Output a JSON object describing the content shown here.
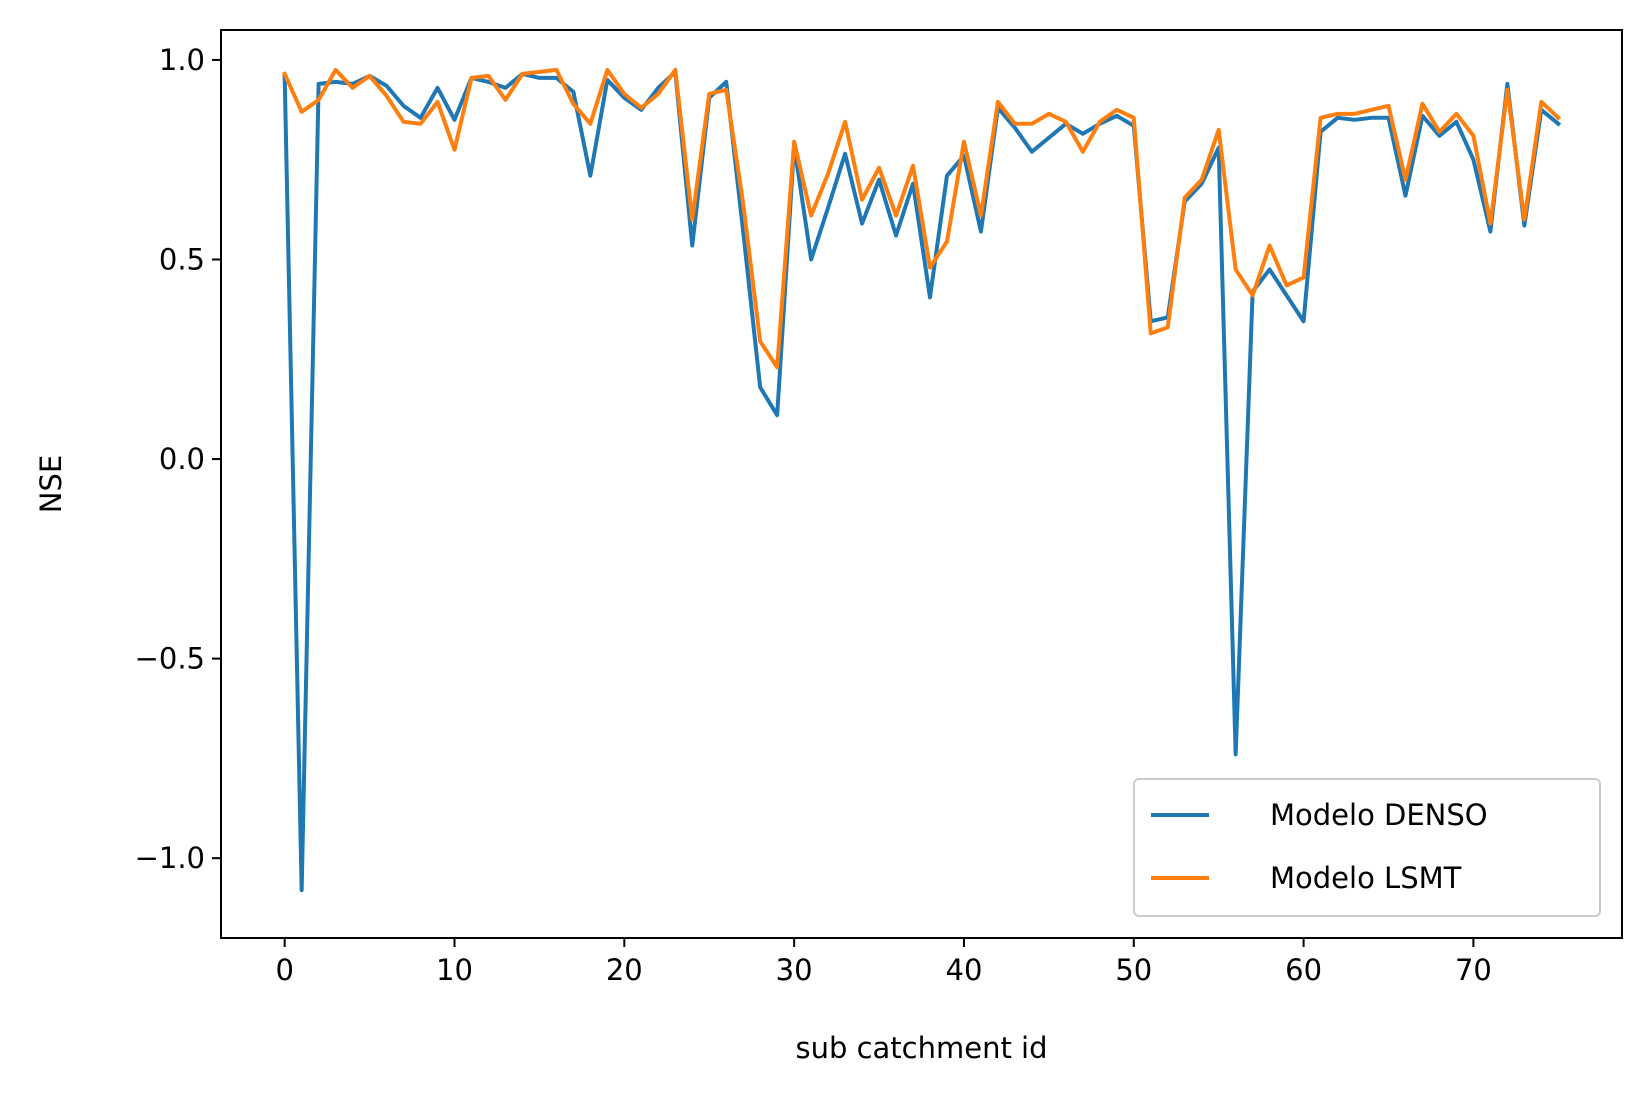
{
  "chart_data": {
    "type": "line",
    "xlabel": "sub catchment id",
    "ylabel": "NSE",
    "xlim": [
      -3.75,
      78.75
    ],
    "ylim": [
      -1.2,
      1.075
    ],
    "xticks": [
      0,
      10,
      20,
      30,
      40,
      50,
      60,
      70
    ],
    "xtick_labels": [
      "0",
      "10",
      "20",
      "30",
      "40",
      "50",
      "60",
      "70"
    ],
    "yticks": [
      -1.0,
      -0.5,
      0.0,
      0.5,
      1.0
    ],
    "ytick_labels": [
      "−1.0",
      "−0.5",
      "0.0",
      "0.5",
      "1.0"
    ],
    "grid": false,
    "legend_position": "lower-right",
    "x": [
      0,
      1,
      2,
      3,
      4,
      5,
      6,
      7,
      8,
      9,
      10,
      11,
      12,
      13,
      14,
      15,
      16,
      17,
      18,
      19,
      20,
      21,
      22,
      23,
      24,
      25,
      26,
      27,
      28,
      29,
      30,
      31,
      32,
      33,
      34,
      35,
      36,
      37,
      38,
      39,
      40,
      41,
      42,
      43,
      44,
      45,
      46,
      47,
      48,
      49,
      50,
      51,
      52,
      53,
      54,
      55,
      56,
      57,
      58,
      59,
      60,
      61,
      62,
      63,
      64,
      65,
      66,
      67,
      68,
      69,
      70,
      71,
      72,
      73,
      74,
      75
    ],
    "series": [
      {
        "name": "Modelo DENSO",
        "color": "#1f77b4",
        "values": [
          0.96,
          -1.08,
          0.94,
          0.945,
          0.94,
          0.96,
          0.935,
          0.885,
          0.855,
          0.93,
          0.85,
          0.955,
          0.945,
          0.93,
          0.965,
          0.955,
          0.955,
          0.92,
          0.71,
          0.95,
          0.905,
          0.875,
          0.93,
          0.97,
          0.535,
          0.905,
          0.945,
          0.57,
          0.18,
          0.11,
          0.785,
          0.5,
          0.63,
          0.765,
          0.59,
          0.7,
          0.56,
          0.69,
          0.405,
          0.71,
          0.76,
          0.57,
          0.88,
          0.83,
          0.77,
          0.805,
          0.84,
          0.815,
          0.84,
          0.86,
          0.835,
          0.345,
          0.355,
          0.645,
          0.69,
          0.78,
          -0.74,
          0.42,
          0.475,
          0.41,
          0.345,
          0.82,
          0.855,
          0.85,
          0.855,
          0.855,
          0.66,
          0.86,
          0.81,
          0.845,
          0.75,
          0.57,
          0.94,
          0.585,
          0.875,
          0.84
        ]
      },
      {
        "name": "Modelo LSMT",
        "color": "#ff7f0e",
        "values": [
          0.965,
          0.87,
          0.9,
          0.975,
          0.93,
          0.96,
          0.91,
          0.845,
          0.84,
          0.895,
          0.775,
          0.955,
          0.96,
          0.9,
          0.965,
          0.97,
          0.975,
          0.89,
          0.84,
          0.975,
          0.915,
          0.88,
          0.915,
          0.975,
          0.6,
          0.915,
          0.925,
          0.64,
          0.295,
          0.23,
          0.795,
          0.61,
          0.715,
          0.845,
          0.65,
          0.73,
          0.61,
          0.735,
          0.48,
          0.545,
          0.795,
          0.61,
          0.895,
          0.84,
          0.84,
          0.865,
          0.845,
          0.77,
          0.845,
          0.875,
          0.855,
          0.315,
          0.33,
          0.655,
          0.7,
          0.825,
          0.475,
          0.41,
          0.535,
          0.435,
          0.455,
          0.855,
          0.865,
          0.865,
          0.875,
          0.885,
          0.7,
          0.89,
          0.82,
          0.865,
          0.81,
          0.59,
          0.925,
          0.6,
          0.895,
          0.855
        ]
      }
    ]
  }
}
